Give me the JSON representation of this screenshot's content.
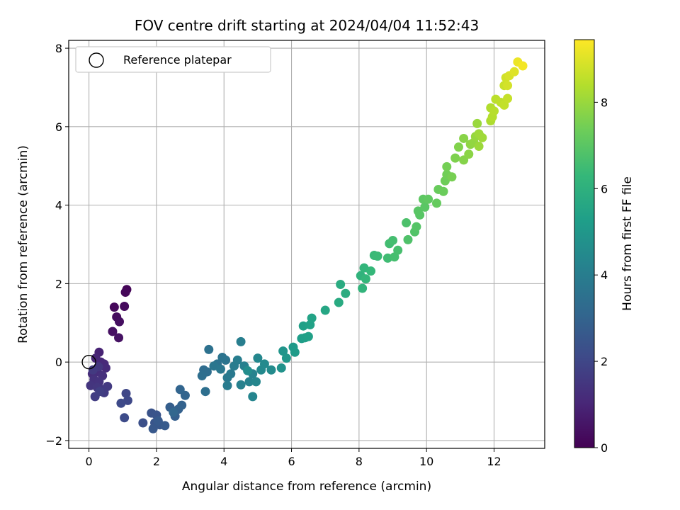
{
  "chart_data": {
    "type": "scatter",
    "title": "FOV centre drift starting at 2024/04/04 11:52:43",
    "xlabel": "Angular distance from reference (arcmin)",
    "ylabel": "Rotation from reference (arcmin)",
    "colorbar_label": "Hours from first FF file",
    "xlim": [
      -0.6,
      13.5
    ],
    "ylim": [
      -2.2,
      8.2
    ],
    "clim": [
      0,
      9.45
    ],
    "xticks": [
      0,
      2,
      4,
      6,
      8,
      10,
      12
    ],
    "yticks": [
      -2,
      0,
      2,
      4,
      6,
      8
    ],
    "cticks": [
      0,
      2,
      4,
      6,
      8
    ],
    "grid": true,
    "legend": {
      "placement": "top-left",
      "entries": [
        "Reference platepar"
      ]
    },
    "reference": {
      "x": 0,
      "y": 0
    },
    "points": [
      {
        "x": 1.12,
        "y": 1.85,
        "c": 0.1
      },
      {
        "x": 1.08,
        "y": 1.78,
        "c": 0.15
      },
      {
        "x": 0.75,
        "y": 1.4,
        "c": 0.2
      },
      {
        "x": 1.05,
        "y": 1.42,
        "c": 0.25
      },
      {
        "x": 0.82,
        "y": 1.15,
        "c": 0.3
      },
      {
        "x": 0.9,
        "y": 1.03,
        "c": 0.35
      },
      {
        "x": 0.7,
        "y": 0.78,
        "c": 0.4
      },
      {
        "x": 0.88,
        "y": 0.62,
        "c": 0.45
      },
      {
        "x": 0.3,
        "y": 0.25,
        "c": 0.9
      },
      {
        "x": 0.2,
        "y": 0.1,
        "c": 1.0
      },
      {
        "x": 0.35,
        "y": 0.0,
        "c": 1.05
      },
      {
        "x": 0.45,
        "y": -0.05,
        "c": 1.1
      },
      {
        "x": 0.5,
        "y": -0.15,
        "c": 1.15
      },
      {
        "x": 0.1,
        "y": -0.3,
        "c": 1.2
      },
      {
        "x": 0.25,
        "y": -0.25,
        "c": 1.25
      },
      {
        "x": 0.4,
        "y": -0.35,
        "c": 1.3
      },
      {
        "x": 0.15,
        "y": -0.45,
        "c": 1.35
      },
      {
        "x": 0.3,
        "y": -0.5,
        "c": 1.4
      },
      {
        "x": 0.05,
        "y": -0.6,
        "c": 1.45
      },
      {
        "x": 0.25,
        "y": -0.65,
        "c": 1.5
      },
      {
        "x": 0.4,
        "y": -0.7,
        "c": 1.55
      },
      {
        "x": 0.55,
        "y": -0.62,
        "c": 1.6
      },
      {
        "x": 0.45,
        "y": -0.78,
        "c": 1.65
      },
      {
        "x": 0.18,
        "y": -0.88,
        "c": 1.7
      },
      {
        "x": 0.32,
        "y": -0.75,
        "c": 1.75
      },
      {
        "x": 0.12,
        "y": -0.2,
        "c": 1.6
      },
      {
        "x": 0.28,
        "y": -0.12,
        "c": 1.5
      },
      {
        "x": 1.1,
        "y": -0.8,
        "c": 2.0
      },
      {
        "x": 1.15,
        "y": -0.98,
        "c": 2.05
      },
      {
        "x": 0.95,
        "y": -1.05,
        "c": 2.1
      },
      {
        "x": 1.05,
        "y": -1.42,
        "c": 2.15
      },
      {
        "x": 1.6,
        "y": -1.55,
        "c": 2.3
      },
      {
        "x": 1.85,
        "y": -1.3,
        "c": 2.4
      },
      {
        "x": 2.0,
        "y": -1.35,
        "c": 2.45
      },
      {
        "x": 1.95,
        "y": -1.55,
        "c": 2.5
      },
      {
        "x": 2.1,
        "y": -1.6,
        "c": 2.55
      },
      {
        "x": 1.9,
        "y": -1.7,
        "c": 2.6
      },
      {
        "x": 2.05,
        "y": -1.5,
        "c": 2.65
      },
      {
        "x": 2.25,
        "y": -1.62,
        "c": 2.7
      },
      {
        "x": 2.4,
        "y": -1.15,
        "c": 2.8
      },
      {
        "x": 2.55,
        "y": -1.38,
        "c": 2.85
      },
      {
        "x": 2.65,
        "y": -1.2,
        "c": 2.9
      },
      {
        "x": 2.75,
        "y": -1.1,
        "c": 2.95
      },
      {
        "x": 2.85,
        "y": -0.85,
        "c": 3.0
      },
      {
        "x": 2.7,
        "y": -0.7,
        "c": 3.05
      },
      {
        "x": 2.5,
        "y": -1.28,
        "c": 3.1
      },
      {
        "x": 3.4,
        "y": -0.2,
        "c": 3.3
      },
      {
        "x": 3.5,
        "y": -0.25,
        "c": 3.35
      },
      {
        "x": 3.35,
        "y": -0.35,
        "c": 3.4
      },
      {
        "x": 3.45,
        "y": -0.75,
        "c": 3.45
      },
      {
        "x": 3.55,
        "y": 0.32,
        "c": 3.5
      },
      {
        "x": 3.8,
        "y": -0.05,
        "c": 3.55
      },
      {
        "x": 3.95,
        "y": 0.12,
        "c": 3.6
      },
      {
        "x": 4.05,
        "y": 0.05,
        "c": 3.65
      },
      {
        "x": 3.7,
        "y": -0.1,
        "c": 3.7
      },
      {
        "x": 3.9,
        "y": -0.18,
        "c": 3.75
      },
      {
        "x": 4.1,
        "y": -0.4,
        "c": 3.8
      },
      {
        "x": 4.2,
        "y": -0.3,
        "c": 3.85
      },
      {
        "x": 4.1,
        "y": -0.6,
        "c": 3.9
      },
      {
        "x": 4.3,
        "y": -0.1,
        "c": 3.95
      },
      {
        "x": 4.4,
        "y": 0.05,
        "c": 4.0
      },
      {
        "x": 4.5,
        "y": 0.52,
        "c": 4.05
      },
      {
        "x": 4.6,
        "y": -0.1,
        "c": 4.1
      },
      {
        "x": 4.5,
        "y": -0.58,
        "c": 4.15
      },
      {
        "x": 4.75,
        "y": -0.5,
        "c": 4.2
      },
      {
        "x": 4.85,
        "y": -0.3,
        "c": 4.25
      },
      {
        "x": 4.85,
        "y": -0.88,
        "c": 4.3
      },
      {
        "x": 4.95,
        "y": -0.5,
        "c": 4.35
      },
      {
        "x": 5.0,
        "y": 0.1,
        "c": 4.4
      },
      {
        "x": 5.1,
        "y": -0.2,
        "c": 4.45
      },
      {
        "x": 5.2,
        "y": -0.05,
        "c": 4.5
      },
      {
        "x": 5.4,
        "y": -0.2,
        "c": 4.55
      },
      {
        "x": 4.7,
        "y": -0.22,
        "c": 4.6
      },
      {
        "x": 5.7,
        "y": -0.15,
        "c": 4.8
      },
      {
        "x": 5.75,
        "y": 0.28,
        "c": 4.9
      },
      {
        "x": 5.85,
        "y": 0.1,
        "c": 5.0
      },
      {
        "x": 6.05,
        "y": 0.38,
        "c": 5.1
      },
      {
        "x": 6.1,
        "y": 0.25,
        "c": 5.15
      },
      {
        "x": 6.3,
        "y": 0.6,
        "c": 5.25
      },
      {
        "x": 6.4,
        "y": 0.62,
        "c": 5.3
      },
      {
        "x": 6.35,
        "y": 0.92,
        "c": 5.35
      },
      {
        "x": 6.55,
        "y": 0.95,
        "c": 5.4
      },
      {
        "x": 6.6,
        "y": 1.12,
        "c": 5.45
      },
      {
        "x": 6.5,
        "y": 0.65,
        "c": 5.35
      },
      {
        "x": 7.0,
        "y": 1.32,
        "c": 5.6
      },
      {
        "x": 7.4,
        "y": 1.52,
        "c": 5.75
      },
      {
        "x": 7.45,
        "y": 1.98,
        "c": 5.8
      },
      {
        "x": 7.6,
        "y": 1.75,
        "c": 5.85
      },
      {
        "x": 8.05,
        "y": 2.2,
        "c": 6.1
      },
      {
        "x": 8.1,
        "y": 1.88,
        "c": 6.15
      },
      {
        "x": 8.15,
        "y": 2.4,
        "c": 6.2
      },
      {
        "x": 8.2,
        "y": 2.12,
        "c": 6.25
      },
      {
        "x": 8.35,
        "y": 2.32,
        "c": 6.3
      },
      {
        "x": 8.45,
        "y": 2.72,
        "c": 6.35
      },
      {
        "x": 8.55,
        "y": 2.7,
        "c": 6.4
      },
      {
        "x": 8.85,
        "y": 2.65,
        "c": 6.5
      },
      {
        "x": 8.9,
        "y": 3.02,
        "c": 6.55
      },
      {
        "x": 9.0,
        "y": 3.1,
        "c": 6.6
      },
      {
        "x": 9.05,
        "y": 2.68,
        "c": 6.62
      },
      {
        "x": 9.15,
        "y": 2.85,
        "c": 6.65
      },
      {
        "x": 9.4,
        "y": 3.55,
        "c": 6.75
      },
      {
        "x": 9.45,
        "y": 3.12,
        "c": 6.8
      },
      {
        "x": 9.65,
        "y": 3.32,
        "c": 6.85
      },
      {
        "x": 9.7,
        "y": 3.45,
        "c": 6.9
      },
      {
        "x": 9.8,
        "y": 3.75,
        "c": 6.95
      },
      {
        "x": 9.75,
        "y": 3.85,
        "c": 6.97
      },
      {
        "x": 9.95,
        "y": 3.95,
        "c": 7.0
      },
      {
        "x": 9.9,
        "y": 4.15,
        "c": 7.05
      },
      {
        "x": 10.05,
        "y": 4.15,
        "c": 7.1
      },
      {
        "x": 10.3,
        "y": 4.05,
        "c": 7.2
      },
      {
        "x": 10.35,
        "y": 4.4,
        "c": 7.25
      },
      {
        "x": 10.5,
        "y": 4.35,
        "c": 7.3
      },
      {
        "x": 10.55,
        "y": 4.62,
        "c": 7.35
      },
      {
        "x": 10.6,
        "y": 4.78,
        "c": 7.4
      },
      {
        "x": 10.6,
        "y": 4.98,
        "c": 7.45
      },
      {
        "x": 10.75,
        "y": 4.72,
        "c": 7.5
      },
      {
        "x": 10.85,
        "y": 5.2,
        "c": 7.6
      },
      {
        "x": 10.95,
        "y": 5.48,
        "c": 7.65
      },
      {
        "x": 11.1,
        "y": 5.15,
        "c": 7.7
      },
      {
        "x": 11.1,
        "y": 5.7,
        "c": 7.75
      },
      {
        "x": 11.25,
        "y": 5.3,
        "c": 7.8
      },
      {
        "x": 11.3,
        "y": 5.55,
        "c": 7.85
      },
      {
        "x": 11.4,
        "y": 5.6,
        "c": 7.9
      },
      {
        "x": 11.45,
        "y": 5.75,
        "c": 7.95
      },
      {
        "x": 11.5,
        "y": 6.08,
        "c": 8.0
      },
      {
        "x": 11.55,
        "y": 5.5,
        "c": 8.05
      },
      {
        "x": 11.65,
        "y": 5.72,
        "c": 8.1
      },
      {
        "x": 11.55,
        "y": 5.82,
        "c": 8.08
      },
      {
        "x": 11.9,
        "y": 6.15,
        "c": 8.3
      },
      {
        "x": 11.9,
        "y": 6.48,
        "c": 8.35
      },
      {
        "x": 11.95,
        "y": 6.25,
        "c": 8.4
      },
      {
        "x": 12.0,
        "y": 6.4,
        "c": 8.45
      },
      {
        "x": 12.05,
        "y": 6.7,
        "c": 8.5
      },
      {
        "x": 12.2,
        "y": 6.62,
        "c": 8.55
      },
      {
        "x": 12.3,
        "y": 6.55,
        "c": 8.6
      },
      {
        "x": 12.4,
        "y": 6.72,
        "c": 8.65
      },
      {
        "x": 12.3,
        "y": 7.05,
        "c": 8.7
      },
      {
        "x": 12.35,
        "y": 7.25,
        "c": 8.8
      },
      {
        "x": 12.4,
        "y": 7.05,
        "c": 8.85
      },
      {
        "x": 12.45,
        "y": 7.3,
        "c": 8.9
      },
      {
        "x": 12.6,
        "y": 7.4,
        "c": 9.0
      },
      {
        "x": 12.7,
        "y": 7.65,
        "c": 9.2
      },
      {
        "x": 12.85,
        "y": 7.55,
        "c": 9.3
      }
    ]
  }
}
